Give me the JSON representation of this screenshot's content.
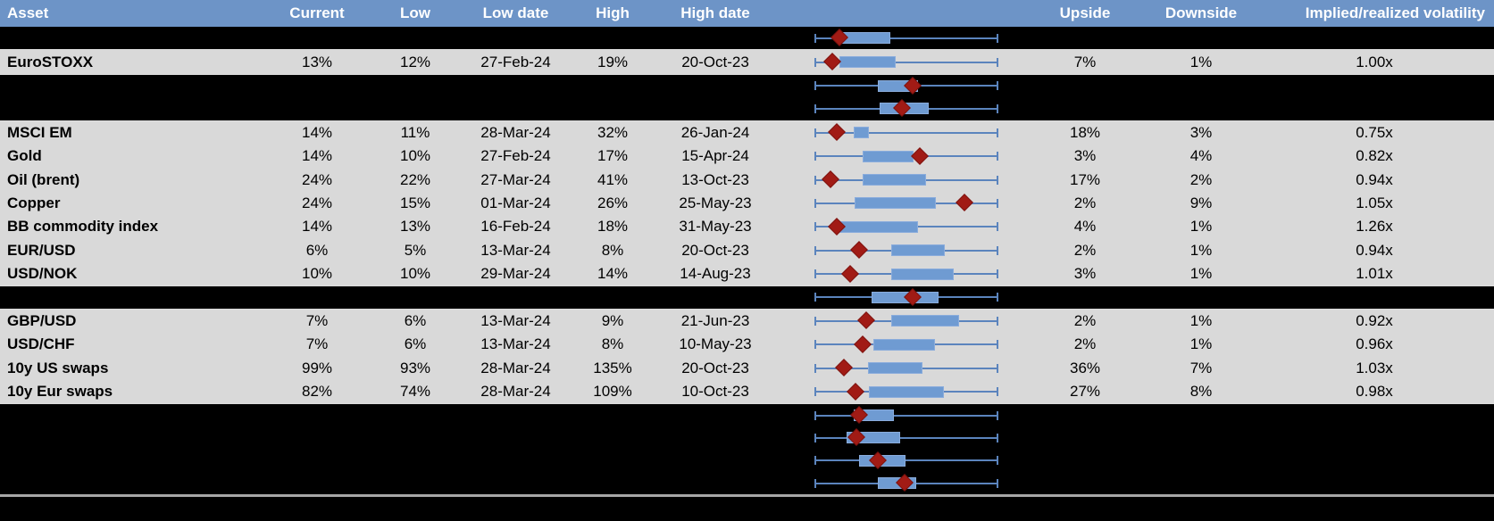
{
  "colors": {
    "header_bg": "#6D94C7",
    "header_text": "#FFFFFF",
    "row_bg": "#D9D9D9",
    "hidden_bg": "#000000",
    "cell_text": "#000000",
    "whisker": "#5B84BD",
    "box_fill": "#6F9BD2",
    "box_border": "#8AACDC",
    "marker_fill": "#A11B15",
    "marker_border": "#7D120E",
    "divider": "#A6A6A6",
    "border_light": "#DCDCDC"
  },
  "header": {
    "asset": "Asset",
    "current": "Current",
    "low": "Low",
    "low_date": "Low date",
    "high": "High",
    "high_date": "High date",
    "chart": "",
    "upside": "Upside",
    "downside": "Downside",
    "implied": "Implied/realized volatility"
  },
  "rows": [
    {
      "type": "hidden",
      "plot": {
        "box": [
          0.147,
          0.412
        ],
        "marker": 0.132
      }
    },
    {
      "type": "data",
      "cells": {
        "asset": "EuroSTOXX",
        "current": "13%",
        "low": "12%",
        "low_date": "27-Feb-24",
        "high": "19%",
        "high_date": "20-Oct-23",
        "upside": "7%",
        "downside": "1%",
        "implied": "1.00x"
      },
      "plot": {
        "box": [
          0.132,
          0.441
        ],
        "marker": 0.093
      }
    },
    {
      "type": "hidden",
      "plot": {
        "box": [
          0.343,
          0.564
        ],
        "marker": 0.534
      }
    },
    {
      "type": "hidden",
      "plot": {
        "box": [
          0.353,
          0.623
        ],
        "marker": 0.475
      }
    },
    {
      "type": "data",
      "cells": {
        "asset": "MSCI EM",
        "current": "14%",
        "low": "11%",
        "low_date": "28-Mar-24",
        "high": "32%",
        "high_date": "26-Jan-24",
        "upside": "18%",
        "downside": "3%",
        "implied": "0.75x"
      },
      "plot": {
        "box": [
          0.211,
          0.294
        ],
        "marker": 0.118
      }
    },
    {
      "type": "data",
      "cells": {
        "asset": "Gold",
        "current": "14%",
        "low": "10%",
        "low_date": "27-Feb-24",
        "high": "17%",
        "high_date": "15-Apr-24",
        "upside": "3%",
        "downside": "4%",
        "implied": "0.82x"
      },
      "plot": {
        "box": [
          0.26,
          0.539
        ],
        "marker": 0.574
      }
    },
    {
      "type": "data",
      "cells": {
        "asset": "Oil (brent)",
        "current": "24%",
        "low": "22%",
        "low_date": "27-Mar-24",
        "high": "41%",
        "high_date": "13-Oct-23",
        "upside": "17%",
        "downside": "2%",
        "implied": "0.94x"
      },
      "plot": {
        "box": [
          0.26,
          0.608
        ],
        "marker": 0.083
      }
    },
    {
      "type": "data",
      "cells": {
        "asset": "Copper",
        "current": "24%",
        "low": "15%",
        "low_date": "01-Mar-24",
        "high": "26%",
        "high_date": "25-May-23",
        "upside": "2%",
        "downside": "9%",
        "implied": "1.05x"
      },
      "plot": {
        "box": [
          0.216,
          0.662
        ],
        "marker": 0.819
      }
    },
    {
      "type": "data",
      "cells": {
        "asset": "BB commodity index",
        "current": "14%",
        "low": "13%",
        "low_date": "16-Feb-24",
        "high": "18%",
        "high_date": "31-May-23",
        "upside": "4%",
        "downside": "1%",
        "implied": "1.26x"
      },
      "plot": {
        "box": [
          0.132,
          0.564
        ],
        "marker": 0.118
      }
    },
    {
      "type": "data",
      "cells": {
        "asset": "EUR/USD",
        "current": "6%",
        "low": "5%",
        "low_date": "13-Mar-24",
        "high": "8%",
        "high_date": "20-Oct-23",
        "upside": "2%",
        "downside": "1%",
        "implied": "0.94x"
      },
      "plot": {
        "box": [
          0.417,
          0.711
        ],
        "marker": 0.24
      }
    },
    {
      "type": "data",
      "cells": {
        "asset": "USD/NOK",
        "current": "10%",
        "low": "10%",
        "low_date": "29-Mar-24",
        "high": "14%",
        "high_date": "14-Aug-23",
        "upside": "3%",
        "downside": "1%",
        "implied": "1.01x"
      },
      "plot": {
        "box": [
          0.417,
          0.76
        ],
        "marker": 0.191
      }
    },
    {
      "type": "hidden",
      "plot": {
        "box": [
          0.309,
          0.677
        ],
        "marker": 0.534
      }
    },
    {
      "type": "data",
      "cells": {
        "asset": "GBP/USD",
        "current": "7%",
        "low": "6%",
        "low_date": "13-Mar-24",
        "high": "9%",
        "high_date": "21-Jun-23",
        "upside": "2%",
        "downside": "1%",
        "implied": "0.92x"
      },
      "plot": {
        "box": [
          0.417,
          0.789
        ],
        "marker": 0.279
      }
    },
    {
      "type": "data",
      "cells": {
        "asset": "USD/CHF",
        "current": "7%",
        "low": "6%",
        "low_date": "13-Mar-24",
        "high": "8%",
        "high_date": "10-May-23",
        "upside": "2%",
        "downside": "1%",
        "implied": "0.96x"
      },
      "plot": {
        "box": [
          0.319,
          0.657
        ],
        "marker": 0.26
      }
    },
    {
      "type": "data",
      "cells": {
        "asset": "10y US swaps",
        "current": "99%",
        "low": "93%",
        "low_date": "28-Mar-24",
        "high": "135%",
        "high_date": "20-Oct-23",
        "upside": "36%",
        "downside": "7%",
        "implied": "1.03x"
      },
      "plot": {
        "box": [
          0.289,
          0.588
        ],
        "marker": 0.157
      }
    },
    {
      "type": "data",
      "cells": {
        "asset": "10y Eur swaps",
        "current": "82%",
        "low": "74%",
        "low_date": "28-Mar-24",
        "high": "109%",
        "high_date": "10-Oct-23",
        "upside": "27%",
        "downside": "8%",
        "implied": "0.98x"
      },
      "plot": {
        "box": [
          0.294,
          0.706
        ],
        "marker": 0.221
      }
    },
    {
      "type": "hidden",
      "plot": {
        "box": [
          0.211,
          0.431
        ],
        "marker": 0.24
      }
    },
    {
      "type": "hidden",
      "plot": {
        "box": [
          0.172,
          0.466
        ],
        "marker": 0.225
      }
    },
    {
      "type": "hidden",
      "plot": {
        "box": [
          0.24,
          0.495
        ],
        "marker": 0.343
      }
    },
    {
      "type": "hidden",
      "plot": {
        "box": [
          0.343,
          0.554
        ],
        "marker": 0.49
      }
    }
  ],
  "chart_data": {
    "type": "table",
    "columns": [
      "Asset",
      "Current",
      "Low",
      "Low date",
      "High",
      "High date",
      "Upside",
      "Downside",
      "Implied/realized volatility"
    ],
    "rows": [
      [
        "EuroSTOXX",
        "13%",
        "12%",
        "27-Feb-24",
        "19%",
        "20-Oct-23",
        "7%",
        "1%",
        "1.00x"
      ],
      [
        "MSCI EM",
        "14%",
        "11%",
        "28-Mar-24",
        "32%",
        "26-Jan-24",
        "18%",
        "3%",
        "0.75x"
      ],
      [
        "Gold",
        "14%",
        "10%",
        "27-Feb-24",
        "17%",
        "15-Apr-24",
        "3%",
        "4%",
        "0.82x"
      ],
      [
        "Oil (brent)",
        "24%",
        "22%",
        "27-Mar-24",
        "41%",
        "13-Oct-23",
        "17%",
        "2%",
        "0.94x"
      ],
      [
        "Copper",
        "24%",
        "15%",
        "01-Mar-24",
        "26%",
        "25-May-23",
        "2%",
        "9%",
        "1.05x"
      ],
      [
        "BB commodity index",
        "14%",
        "13%",
        "16-Feb-24",
        "18%",
        "31-May-23",
        "4%",
        "1%",
        "1.26x"
      ],
      [
        "EUR/USD",
        "6%",
        "5%",
        "13-Mar-24",
        "8%",
        "20-Oct-23",
        "2%",
        "1%",
        "0.94x"
      ],
      [
        "USD/NOK",
        "10%",
        "10%",
        "29-Mar-24",
        "14%",
        "14-Aug-23",
        "3%",
        "1%",
        "1.01x"
      ],
      [
        "GBP/USD",
        "7%",
        "6%",
        "13-Mar-24",
        "9%",
        "21-Jun-23",
        "2%",
        "1%",
        "0.92x"
      ],
      [
        "USD/CHF",
        "7%",
        "6%",
        "13-Mar-24",
        "8%",
        "10-May-23",
        "2%",
        "1%",
        "0.96x"
      ],
      [
        "10y US swaps",
        "99%",
        "93%",
        "28-Mar-24",
        "135%",
        "20-Oct-23",
        "36%",
        "7%",
        "1.03x"
      ],
      [
        "10y Eur swaps",
        "82%",
        "74%",
        "28-Mar-24",
        "109%",
        "10-Oct-23",
        "27%",
        "8%",
        "0.98x"
      ]
    ],
    "embedded_boxplots": {
      "note": "each row has a horizontal box plot; whiskers span the full low-high range (identical extents for all rows); box span and diamond marker are given as fractions 0-1 of that range",
      "series": [
        {
          "row": "(hidden row 1)",
          "box": [
            0.147,
            0.412
          ],
          "marker": 0.132
        },
        {
          "row": "EuroSTOXX",
          "box": [
            0.132,
            0.441
          ],
          "marker": 0.093
        },
        {
          "row": "(hidden row 2)",
          "box": [
            0.343,
            0.564
          ],
          "marker": 0.534
        },
        {
          "row": "(hidden row 3)",
          "box": [
            0.353,
            0.623
          ],
          "marker": 0.475
        },
        {
          "row": "MSCI EM",
          "box": [
            0.211,
            0.294
          ],
          "marker": 0.118
        },
        {
          "row": "Gold",
          "box": [
            0.26,
            0.539
          ],
          "marker": 0.574
        },
        {
          "row": "Oil (brent)",
          "box": [
            0.26,
            0.608
          ],
          "marker": 0.083
        },
        {
          "row": "Copper",
          "box": [
            0.216,
            0.662
          ],
          "marker": 0.819
        },
        {
          "row": "BB commodity index",
          "box": [
            0.132,
            0.564
          ],
          "marker": 0.118
        },
        {
          "row": "EUR/USD",
          "box": [
            0.417,
            0.711
          ],
          "marker": 0.24
        },
        {
          "row": "USD/NOK",
          "box": [
            0.417,
            0.76
          ],
          "marker": 0.191
        },
        {
          "row": "(hidden row 4)",
          "box": [
            0.309,
            0.677
          ],
          "marker": 0.534
        },
        {
          "row": "GBP/USD",
          "box": [
            0.417,
            0.789
          ],
          "marker": 0.279
        },
        {
          "row": "USD/CHF",
          "box": [
            0.319,
            0.657
          ],
          "marker": 0.26
        },
        {
          "row": "10y US swaps",
          "box": [
            0.289,
            0.588
          ],
          "marker": 0.157
        },
        {
          "row": "10y Eur swaps",
          "box": [
            0.294,
            0.706
          ],
          "marker": 0.221
        },
        {
          "row": "(hidden row 5)",
          "box": [
            0.211,
            0.431
          ],
          "marker": 0.24
        },
        {
          "row": "(hidden row 6)",
          "box": [
            0.172,
            0.466
          ],
          "marker": 0.225
        },
        {
          "row": "(hidden row 7)",
          "box": [
            0.24,
            0.495
          ],
          "marker": 0.343
        },
        {
          "row": "(hidden row 8)",
          "box": [
            0.343,
            0.554
          ],
          "marker": 0.49
        }
      ]
    }
  }
}
